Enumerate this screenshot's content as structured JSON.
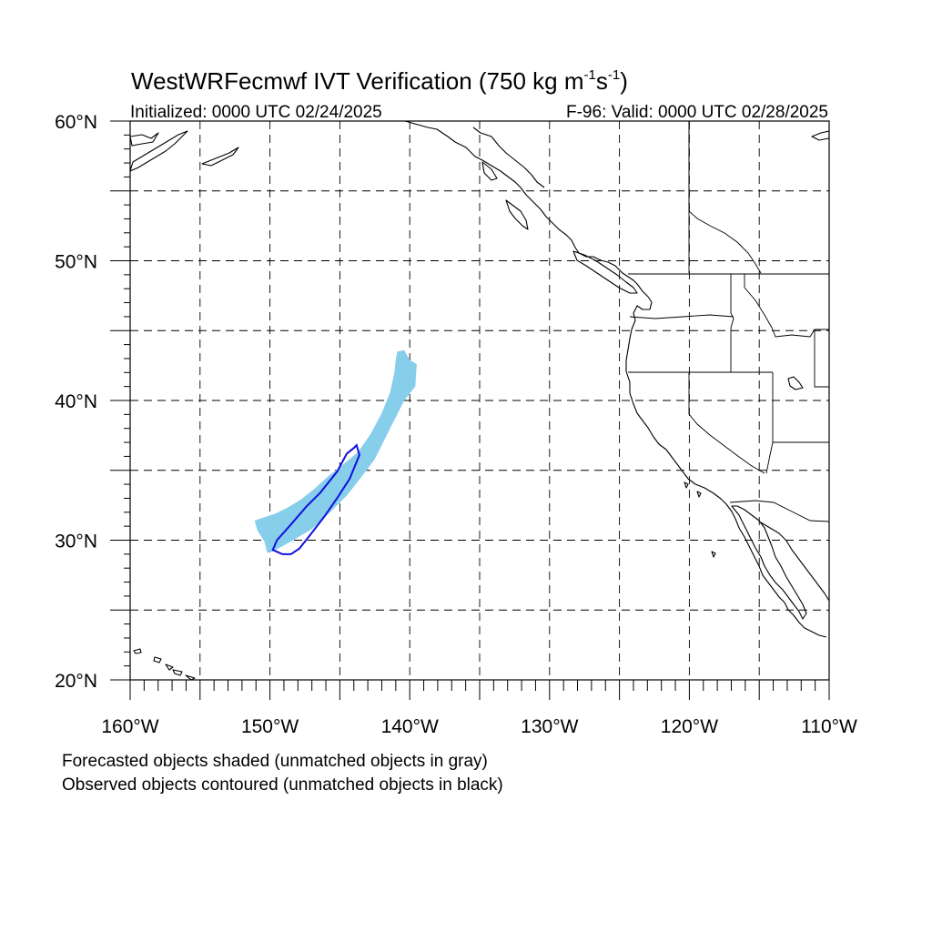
{
  "title": {
    "main": "WestWRFecmwf IVT Verification (750 kg m",
    "sup1": "-1",
    "mid": "s",
    "sup2": "-1",
    "end": ")"
  },
  "subtitle_left": "Initialized: 0000 UTC 02/24/2025",
  "subtitle_right": "F-96: Valid: 0000 UTC 02/28/2025",
  "map": {
    "lon_range": [
      -160,
      -110
    ],
    "lat_range": [
      20,
      60
    ],
    "grid": "dashed, every 5 degrees",
    "lat_labels": [
      {
        "value": 60,
        "label": "60°N"
      },
      {
        "value": 50,
        "label": "50°N"
      },
      {
        "value": 40,
        "label": "40°N"
      },
      {
        "value": 30,
        "label": "30°N"
      },
      {
        "value": 20,
        "label": "20°N"
      }
    ],
    "lon_labels": [
      {
        "value": -160,
        "label": "160°W"
      },
      {
        "value": -150,
        "label": "150°W"
      },
      {
        "value": -140,
        "label": "140°W"
      },
      {
        "value": -130,
        "label": "130°W"
      },
      {
        "value": -120,
        "label": "120°W"
      },
      {
        "value": -110,
        "label": "110°W"
      }
    ],
    "colors": {
      "forecast_fill": "#87ceeb",
      "observed_contour": "#1010e0",
      "coast": "#000000",
      "grid": "#000000"
    },
    "forecast_object": [
      [
        -140.9,
        43.5
      ],
      [
        -140.4,
        43.6
      ],
      [
        -140.0,
        42.9
      ],
      [
        -139.5,
        42.6
      ],
      [
        -139.6,
        41.0
      ],
      [
        -140.4,
        40.0
      ],
      [
        -141.3,
        38.2
      ],
      [
        -142.5,
        35.8
      ],
      [
        -143.4,
        34.6
      ],
      [
        -144.5,
        33.2
      ],
      [
        -145.8,
        31.9
      ],
      [
        -147.0,
        30.8
      ],
      [
        -148.5,
        29.9
      ],
      [
        -149.6,
        29.3
      ],
      [
        -149.8,
        29.2
      ],
      [
        -150.2,
        29.1
      ],
      [
        -150.4,
        29.9
      ],
      [
        -150.9,
        30.7
      ],
      [
        -151.1,
        31.4
      ],
      [
        -150.5,
        31.6
      ],
      [
        -149.6,
        31.9
      ],
      [
        -148.8,
        32.3
      ],
      [
        -147.8,
        32.9
      ],
      [
        -146.8,
        33.7
      ],
      [
        -145.8,
        34.6
      ],
      [
        -144.9,
        35.3
      ],
      [
        -143.7,
        36.3
      ],
      [
        -142.8,
        37.6
      ],
      [
        -142.0,
        39.1
      ],
      [
        -141.4,
        40.6
      ],
      [
        -141.1,
        42.0
      ],
      [
        -141.0,
        42.9
      ]
    ],
    "observed_object": [
      [
        -143.8,
        36.8
      ],
      [
        -143.6,
        36.1
      ],
      [
        -144.3,
        34.4
      ],
      [
        -145.2,
        33.0
      ],
      [
        -146.1,
        31.7
      ],
      [
        -147.1,
        30.4
      ],
      [
        -147.9,
        29.4
      ],
      [
        -148.5,
        29.0
      ],
      [
        -149.1,
        29.0
      ],
      [
        -149.8,
        29.3
      ],
      [
        -149.5,
        30.0
      ],
      [
        -148.6,
        31.0
      ],
      [
        -147.4,
        32.4
      ],
      [
        -146.4,
        33.4
      ],
      [
        -145.2,
        34.9
      ],
      [
        -144.5,
        36.2
      ],
      [
        -144.0,
        36.6
      ]
    ]
  },
  "notes": [
    "Forecasted objects shaded (unmatched objects in gray)",
    "Observed objects contoured (unmatched objects in black)"
  ]
}
